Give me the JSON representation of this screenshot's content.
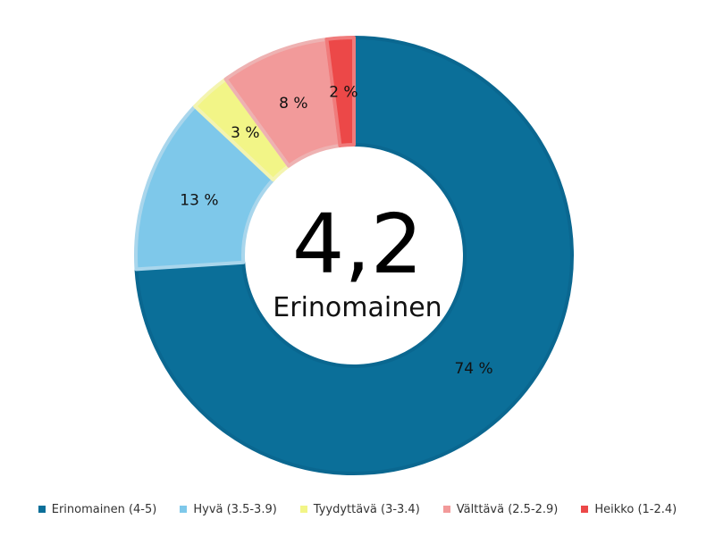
{
  "chart_data": {
    "type": "pie",
    "categories": [
      "Erinomainen (4-5)",
      "Hyvä (3.5-3.9)",
      "Tyydyttävä (3-3.4)",
      "Välttävä (2.5-2.9)",
      "Heikko (1-2.4)"
    ],
    "values": [
      74,
      13,
      3,
      8,
      2
    ],
    "value_labels": [
      "74 %",
      "13 %",
      "3 %",
      "8 %",
      "2 %"
    ],
    "colors": [
      "#0b6f99",
      "#7ec8ea",
      "#f2f587",
      "#f29a9a",
      "#ec4848"
    ],
    "stroke_colors": [
      "#0a6790",
      "#a9d6ec",
      "#f4f4b0",
      "#eeb2b2",
      "#f07b7b"
    ],
    "center_value": "4,2",
    "center_text": "Erinomainen",
    "legend_position": "bottom",
    "direction": "clockwise-from-top"
  }
}
